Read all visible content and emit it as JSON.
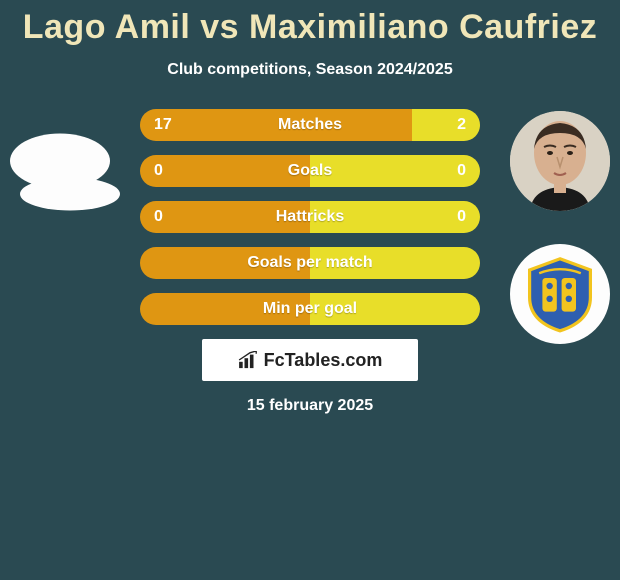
{
  "title": "Lago Amil vs Maximiliano Caufriez",
  "subtitle": "Club competitions, Season 2024/2025",
  "date": "15 february 2025",
  "logo_text": "FcTables.com",
  "colors": {
    "bg": "#2a4a52",
    "title": "#f0e6b8",
    "left_bar": "#df9612",
    "right_bar": "#e8de29",
    "white": "#ffffff"
  },
  "bars": [
    {
      "label": "Matches",
      "left_val": "17",
      "right_val": "2",
      "left_pct": 80,
      "right_pct": 20,
      "show_vals": true
    },
    {
      "label": "Goals",
      "left_val": "0",
      "right_val": "0",
      "left_pct": 50,
      "right_pct": 50,
      "show_vals": true
    },
    {
      "label": "Hattricks",
      "left_val": "0",
      "right_val": "0",
      "left_pct": 50,
      "right_pct": 50,
      "show_vals": true
    },
    {
      "label": "Goals per match",
      "left_val": "",
      "right_val": "",
      "left_pct": 50,
      "right_pct": 50,
      "show_vals": false
    },
    {
      "label": "Min per goal",
      "left_val": "",
      "right_val": "",
      "left_pct": 50,
      "right_pct": 50,
      "show_vals": false
    }
  ],
  "player_right_name": "Maximiliano Caufriez",
  "team_right_colors": {
    "shield": "#2e5fb0",
    "accent": "#f2c41e"
  }
}
